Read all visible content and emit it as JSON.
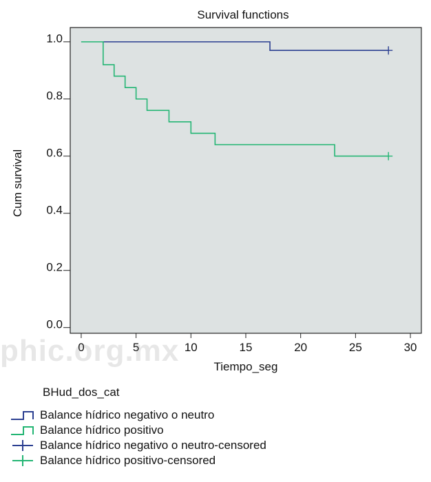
{
  "chart_data": {
    "type": "line",
    "step": true,
    "title": "Survival functions",
    "xlabel": "Tiempo_seg",
    "ylabel": "Cum survival",
    "xlim": [
      -1,
      31
    ],
    "ylim": [
      -0.02,
      1.05
    ],
    "xticks": [
      0,
      5,
      10,
      15,
      20,
      25,
      30
    ],
    "yticks": [
      0.0,
      0.2,
      0.4,
      0.6,
      0.8,
      1.0
    ],
    "ytick_labels": [
      "0.0",
      "0.2",
      "0.4",
      "0.6",
      "0.8",
      "1.0"
    ],
    "background": "#dde2e2",
    "series": [
      {
        "name": "Balance hídrico negativo o neutro",
        "color": "#2b3f91",
        "x": [
          0,
          17.2,
          28
        ],
        "y": [
          1.0,
          0.97,
          0.97
        ],
        "censored": [
          {
            "x": 28,
            "y": 0.97
          }
        ]
      },
      {
        "name": "Balance hídrico positivo",
        "color": "#22b573",
        "x": [
          0,
          2,
          3,
          4,
          5,
          6,
          8,
          10,
          12.2,
          23.1,
          28
        ],
        "y": [
          1.0,
          0.92,
          0.88,
          0.84,
          0.8,
          0.76,
          0.72,
          0.68,
          0.64,
          0.6,
          0.6
        ],
        "censored": [
          {
            "x": 28,
            "y": 0.6
          }
        ]
      }
    ]
  },
  "legend": {
    "title": "BHud_dos_cat",
    "items": [
      {
        "label": "Balance hídrico negativo o neutro",
        "kind": "step",
        "color": "#2b3f91"
      },
      {
        "label": "Balance hídrico positivo",
        "kind": "step",
        "color": "#22b573"
      },
      {
        "label": "Balance hídrico negativo o neutro-censored",
        "kind": "plus",
        "color": "#2b3f91"
      },
      {
        "label": "Balance hídrico positivo-censored",
        "kind": "plus",
        "color": "#22b573"
      }
    ]
  },
  "watermark": "phic.org.mx"
}
